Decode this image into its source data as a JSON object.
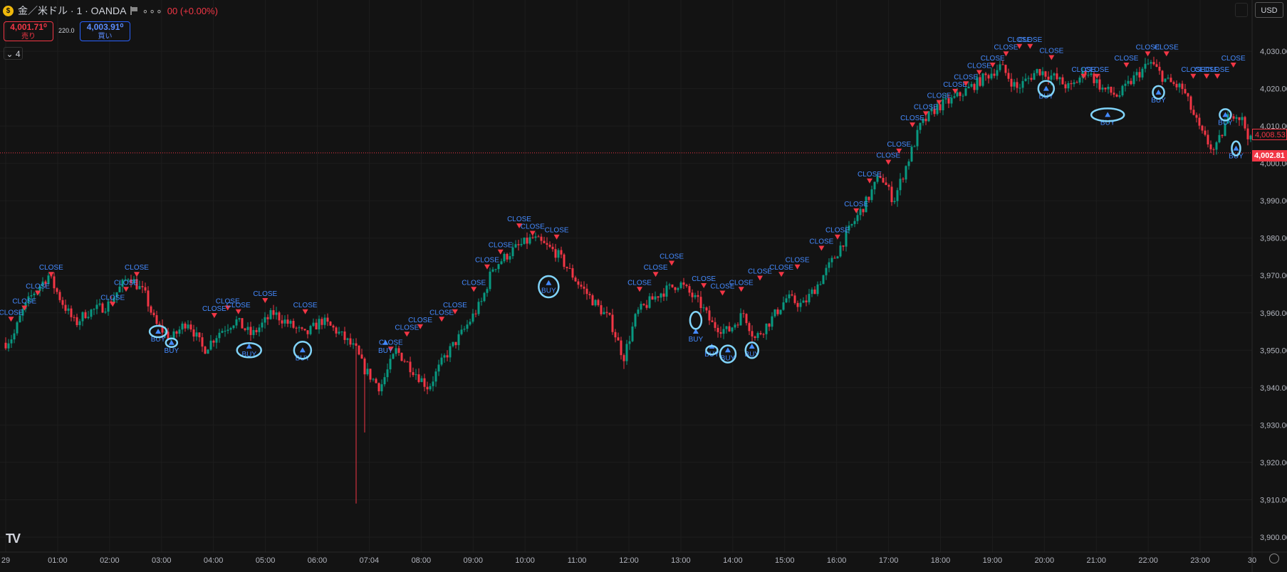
{
  "header": {
    "symbol": "金／米ドル · 1 · OANDA",
    "change": "00 (+0.00%)",
    "more": "∘∘∘",
    "coin_glyph": "$"
  },
  "quotes": {
    "sell_price": "4,001.71⁰",
    "sell_label": "売り",
    "spread": "220.0",
    "buy_price": "4,003.91⁰",
    "buy_label": "買い"
  },
  "collapse_label": "⌄ 4",
  "currency": "USD",
  "logo": "TV",
  "price_labels": {
    "current_a": "4,008.53",
    "current_b": "4,002.81"
  },
  "colors": {
    "bg": "#131313",
    "up": "#089981",
    "down": "#f23645",
    "marker": "#448aff",
    "circle": "#81d4fa",
    "grid": "#1d1d1d"
  },
  "chart_data": {
    "type": "candlestick",
    "x_ticks": [
      "29",
      "01:00",
      "02:00",
      "03:00",
      "04:00",
      "05:00",
      "06:00",
      "07:04",
      "08:00",
      "09:00",
      "10:00",
      "11:00",
      "12:00",
      "13:00",
      "14:00",
      "15:00",
      "16:00",
      "17:00",
      "18:00",
      "19:00",
      "20:00",
      "21:00",
      "22:00",
      "23:00",
      "30"
    ],
    "y_ticks": [
      3900,
      3910,
      3920,
      3930,
      3940,
      3950,
      3960,
      3970,
      3980,
      3990,
      4000,
      4010,
      4020,
      4030
    ],
    "y_range": [
      3896,
      4038
    ],
    "y_tick_format": "comma_2dp",
    "x_range_hours": [
      0,
      23.3
    ],
    "current_price_line": 4002.81,
    "price_path": [
      [
        0,
        3952
      ],
      [
        0.15,
        3954
      ],
      [
        0.3,
        3960
      ],
      [
        0.5,
        3965
      ],
      [
        0.8,
        3970
      ],
      [
        1.05,
        3963
      ],
      [
        1.3,
        3957
      ],
      [
        1.5,
        3960
      ],
      [
        1.9,
        3962
      ],
      [
        2.3,
        3970
      ],
      [
        2.6,
        3965
      ],
      [
        2.8,
        3957
      ],
      [
        3.1,
        3953
      ],
      [
        3.4,
        3958
      ],
      [
        3.7,
        3950
      ],
      [
        4.0,
        3955
      ],
      [
        4.3,
        3958
      ],
      [
        4.6,
        3954
      ],
      [
        5.0,
        3960
      ],
      [
        5.3,
        3957
      ],
      [
        5.6,
        3954
      ],
      [
        5.9,
        3958
      ],
      [
        6.2,
        3955
      ],
      [
        6.55,
        3950
      ],
      [
        6.7,
        3945
      ],
      [
        7.0,
        3940
      ],
      [
        7.3,
        3950
      ],
      [
        7.6,
        3945
      ],
      [
        7.9,
        3940
      ],
      [
        8.2,
        3948
      ],
      [
        8.55,
        3955
      ],
      [
        8.9,
        3963
      ],
      [
        9.1,
        3972
      ],
      [
        9.5,
        3977
      ],
      [
        9.85,
        3980
      ],
      [
        10.3,
        3976
      ],
      [
        10.7,
        3968
      ],
      [
        11.05,
        3962
      ],
      [
        11.3,
        3958
      ],
      [
        11.55,
        3948
      ],
      [
        11.8,
        3960
      ],
      [
        12.2,
        3965
      ],
      [
        12.6,
        3968
      ],
      [
        13.0,
        3962
      ],
      [
        13.2,
        3957
      ],
      [
        13.5,
        3955
      ],
      [
        13.8,
        3960
      ],
      [
        14.0,
        3953
      ],
      [
        14.3,
        3958
      ],
      [
        14.6,
        3964
      ],
      [
        14.9,
        3962
      ],
      [
        15.2,
        3968
      ],
      [
        15.5,
        3975
      ],
      [
        15.8,
        3983
      ],
      [
        16.1,
        3990
      ],
      [
        16.35,
        3997
      ],
      [
        16.6,
        3990
      ],
      [
        16.85,
        4000
      ],
      [
        17.1,
        4010
      ],
      [
        17.4,
        4015
      ],
      [
        17.7,
        4017
      ],
      [
        18.0,
        4020
      ],
      [
        18.3,
        4023
      ],
      [
        18.6,
        4026
      ],
      [
        18.9,
        4020
      ],
      [
        19.3,
        4025
      ],
      [
        19.6,
        4023
      ],
      [
        19.9,
        4020
      ],
      [
        20.2,
        4025
      ],
      [
        20.5,
        4020
      ],
      [
        20.8,
        4018
      ],
      [
        21.1,
        4023
      ],
      [
        21.4,
        4027
      ],
      [
        21.7,
        4022
      ],
      [
        22.0,
        4020
      ],
      [
        22.35,
        4008
      ],
      [
        22.6,
        4003
      ],
      [
        22.9,
        4014
      ],
      [
        23.1,
        4012
      ],
      [
        23.3,
        4005
      ]
    ],
    "close_markers": [
      [
        0.1,
        3958
      ],
      [
        0.35,
        3961
      ],
      [
        0.6,
        3965
      ],
      [
        0.85,
        3970
      ],
      [
        2.0,
        3962
      ],
      [
        2.25,
        3966
      ],
      [
        2.45,
        3970
      ],
      [
        3.9,
        3959
      ],
      [
        4.15,
        3961
      ],
      [
        4.35,
        3960
      ],
      [
        4.85,
        3963
      ],
      [
        5.6,
        3960
      ],
      [
        7.2,
        3950
      ],
      [
        7.5,
        3954
      ],
      [
        7.75,
        3956
      ],
      [
        8.15,
        3958
      ],
      [
        8.4,
        3960
      ],
      [
        8.75,
        3966
      ],
      [
        9.0,
        3972
      ],
      [
        9.25,
        3976
      ],
      [
        9.6,
        3983
      ],
      [
        9.85,
        3981
      ],
      [
        10.3,
        3980
      ],
      [
        11.85,
        3966
      ],
      [
        12.15,
        3970
      ],
      [
        12.45,
        3973
      ],
      [
        13.05,
        3967
      ],
      [
        13.4,
        3965
      ],
      [
        13.75,
        3966
      ],
      [
        14.1,
        3969
      ],
      [
        14.5,
        3970
      ],
      [
        14.8,
        3972
      ],
      [
        15.25,
        3977
      ],
      [
        15.55,
        3980
      ],
      [
        15.9,
        3987
      ],
      [
        16.15,
        3995
      ],
      [
        16.5,
        4000
      ],
      [
        16.7,
        4003
      ],
      [
        16.95,
        4010
      ],
      [
        17.2,
        4013
      ],
      [
        17.45,
        4016
      ],
      [
        17.75,
        4019
      ],
      [
        17.95,
        4021
      ],
      [
        18.2,
        4024
      ],
      [
        18.45,
        4026
      ],
      [
        18.7,
        4029
      ],
      [
        18.95,
        4031
      ],
      [
        19.15,
        4031
      ],
      [
        19.55,
        4028
      ],
      [
        20.15,
        4023
      ],
      [
        20.4,
        4023
      ],
      [
        20.95,
        4026
      ],
      [
        21.35,
        4029
      ],
      [
        21.7,
        4029
      ],
      [
        22.2,
        4023
      ],
      [
        22.45,
        4023
      ],
      [
        22.65,
        4023
      ],
      [
        22.95,
        4026
      ]
    ],
    "buy_markers": [
      [
        2.85,
        3955
      ],
      [
        3.1,
        3952
      ],
      [
        4.55,
        3951
      ],
      [
        5.55,
        3950
      ],
      [
        7.1,
        3952
      ],
      [
        10.15,
        3968
      ],
      [
        12.9,
        3955
      ],
      [
        13.2,
        3951
      ],
      [
        13.5,
        3950
      ],
      [
        13.95,
        3951
      ],
      [
        19.45,
        4020
      ],
      [
        20.6,
        4013
      ],
      [
        21.55,
        4019
      ],
      [
        22.8,
        4013
      ],
      [
        23.0,
        4004
      ]
    ],
    "circled": [
      [
        2.85,
        3955,
        12,
        8
      ],
      [
        3.1,
        3952,
        8,
        6
      ],
      [
        4.55,
        3950,
        17,
        10
      ],
      [
        5.55,
        3950,
        12,
        12
      ],
      [
        10.15,
        3967,
        14,
        15
      ],
      [
        12.9,
        3958,
        8,
        12
      ],
      [
        13.2,
        3950,
        8,
        6
      ],
      [
        13.5,
        3949,
        11,
        12
      ],
      [
        13.95,
        3950,
        9,
        11
      ],
      [
        19.45,
        4020,
        11,
        11
      ],
      [
        20.6,
        4013,
        23,
        9
      ],
      [
        21.55,
        4019,
        8,
        9
      ],
      [
        22.8,
        4013,
        8,
        8
      ],
      [
        23.0,
        4004,
        6,
        10
      ]
    ]
  }
}
